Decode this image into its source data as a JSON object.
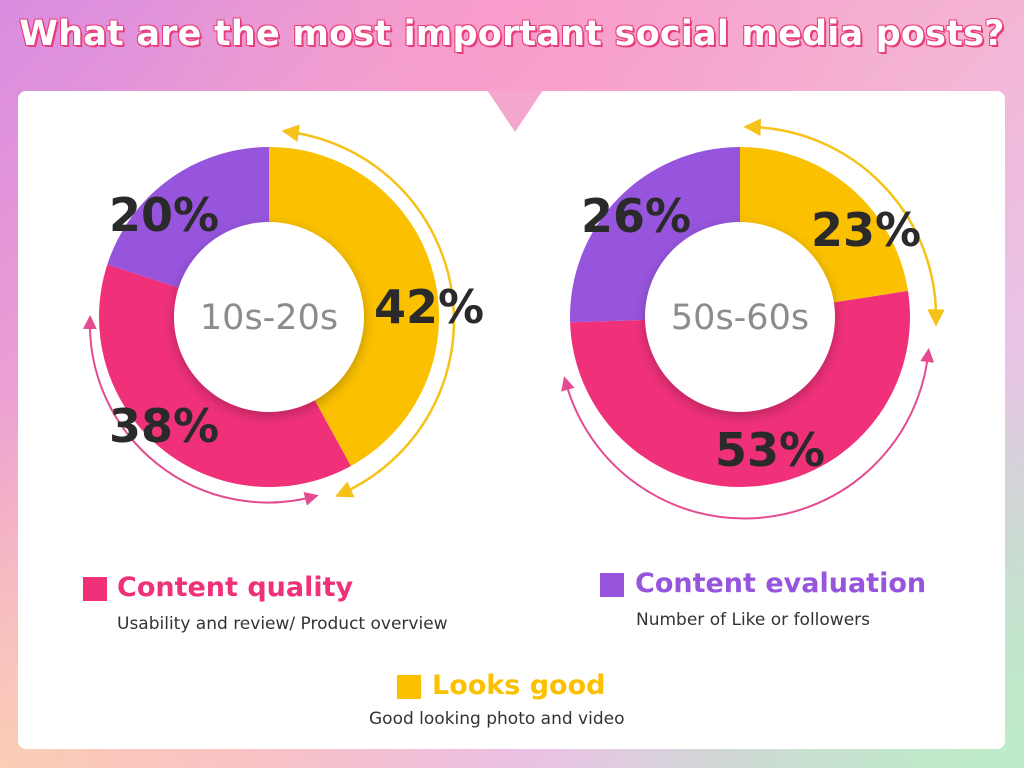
{
  "title": "What are the most important social media posts?",
  "colors": {
    "content_quality": "#f0317a",
    "content_evaluation": "#9755dd",
    "looks_good": "#fbc100"
  },
  "chart_data": [
    {
      "type": "pie",
      "center_label": "10s-20s",
      "slices": [
        {
          "name": "Looks good",
          "value": 42,
          "label": "42%"
        },
        {
          "name": "Content quality",
          "value": 38,
          "label": "38%"
        },
        {
          "name": "Content evaluation",
          "value": 20,
          "label": "20%"
        }
      ]
    },
    {
      "type": "pie",
      "center_label": "50s-60s",
      "slices": [
        {
          "name": "Looks good",
          "value": 23,
          "label": "23%"
        },
        {
          "name": "Content quality",
          "value": 53,
          "label": "53%"
        },
        {
          "name": "Content evaluation",
          "value": 26,
          "label": "26%"
        }
      ]
    }
  ],
  "legend": {
    "content_quality": {
      "title": "Content quality",
      "sub": "Usability and review/ Product overview"
    },
    "content_evaluation": {
      "title": "Content evaluation",
      "sub": "Number of Like or followers"
    },
    "looks_good": {
      "title": "Looks good",
      "sub": "Good looking photo and video"
    }
  }
}
